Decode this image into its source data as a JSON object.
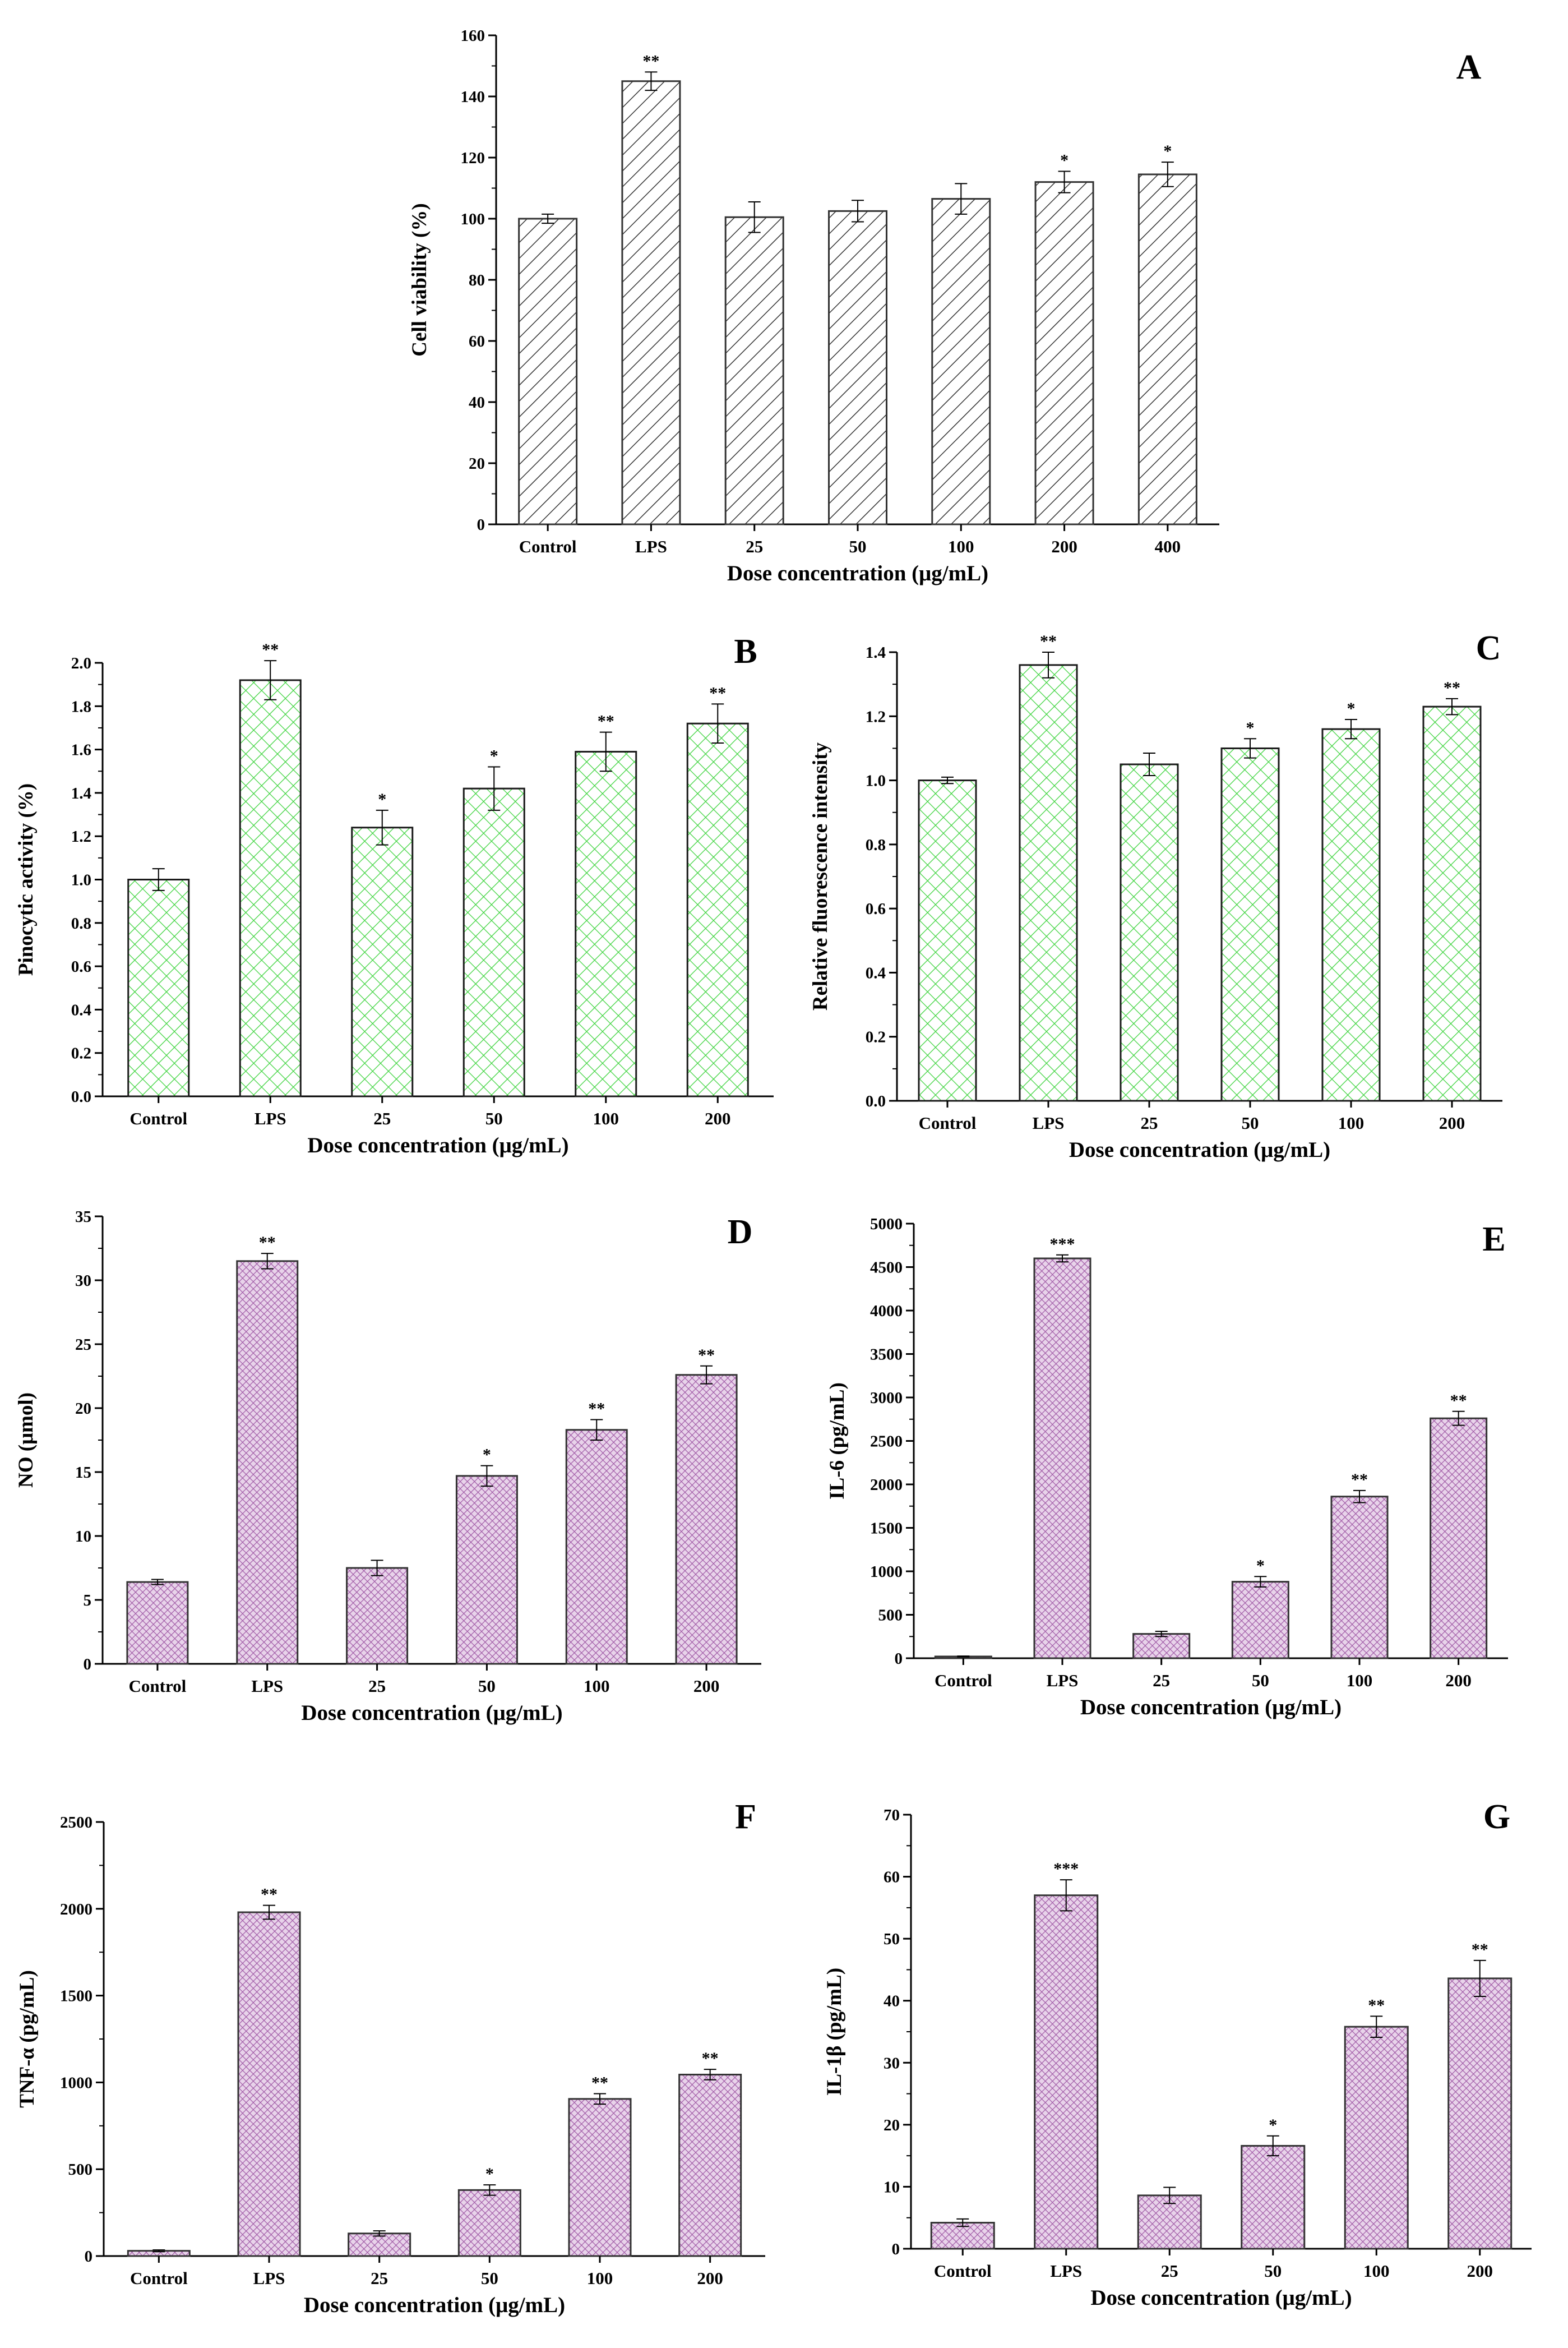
{
  "colors": {
    "panel_a": "#333333",
    "panel_bc": "#3fd43f",
    "panel_dg": "#a05aa6",
    "axis": "#000000"
  },
  "chart_data": [
    {
      "id": "A",
      "type": "bar",
      "letter": "A",
      "pattern": "diagonal-hatch",
      "categories": [
        "Control",
        "LPS",
        "25",
        "50",
        "100",
        "200",
        "400"
      ],
      "values": [
        100,
        145,
        100.5,
        102.5,
        106.5,
        112,
        114.5
      ],
      "errors": [
        1.5,
        3,
        5,
        3.5,
        5,
        3.5,
        4
      ],
      "significance": [
        "",
        "**",
        "",
        "",
        "",
        "*",
        "*"
      ],
      "ylim": [
        0,
        160
      ],
      "yticks": [
        0,
        20,
        40,
        60,
        80,
        100,
        120,
        140,
        160
      ],
      "ylabel": "Cell viability (%)",
      "xlabel": "Dose concentration (μg/mL)"
    },
    {
      "id": "B",
      "type": "bar",
      "letter": "B",
      "pattern": "crosshatch",
      "categories": [
        "Control",
        "LPS",
        "25",
        "50",
        "100",
        "200"
      ],
      "values": [
        1.0,
        1.92,
        1.24,
        1.42,
        1.59,
        1.72
      ],
      "errors": [
        0.05,
        0.09,
        0.08,
        0.1,
        0.09,
        0.09
      ],
      "significance": [
        "",
        "**",
        "*",
        "*",
        "**",
        "**"
      ],
      "ylim": [
        0,
        2.0
      ],
      "yticks": [
        "0.0",
        "0.2",
        "0.4",
        "0.6",
        "0.8",
        "1.0",
        "1.2",
        "1.4",
        "1.6",
        "1.8",
        "2.0"
      ],
      "ylabel": "Pinocytic activity (%)",
      "xlabel": "Dose concentration (μg/mL)"
    },
    {
      "id": "C",
      "type": "bar",
      "letter": "C",
      "pattern": "crosshatch",
      "categories": [
        "Control",
        "LPS",
        "25",
        "50",
        "100",
        "200"
      ],
      "values": [
        1.0,
        1.36,
        1.05,
        1.1,
        1.16,
        1.23
      ],
      "errors": [
        0.01,
        0.04,
        0.035,
        0.03,
        0.03,
        0.025
      ],
      "significance": [
        "",
        "**",
        "",
        "*",
        "*",
        "**"
      ],
      "ylim": [
        0,
        1.4
      ],
      "yticks": [
        "0.0",
        "0.2",
        "0.4",
        "0.6",
        "0.8",
        "1.0",
        "1.2",
        "1.4"
      ],
      "ylabel": "Relative fluorescence intensity",
      "xlabel": "Dose concentration (μg/mL)"
    },
    {
      "id": "D",
      "type": "bar",
      "letter": "D",
      "pattern": "fine-crosshatch",
      "categories": [
        "Control",
        "LPS",
        "25",
        "50",
        "100",
        "200"
      ],
      "values": [
        6.4,
        31.5,
        7.5,
        14.7,
        18.3,
        22.6
      ],
      "errors": [
        0.2,
        0.6,
        0.6,
        0.8,
        0.8,
        0.7
      ],
      "significance": [
        "",
        "**",
        "",
        "*",
        "**",
        "**"
      ],
      "ylim": [
        0,
        35
      ],
      "yticks": [
        0,
        5,
        10,
        15,
        20,
        25,
        30,
        35
      ],
      "ylabel": "NO (μmol)",
      "xlabel": "Dose concentration (μg/mL)"
    },
    {
      "id": "E",
      "type": "bar",
      "letter": "E",
      "pattern": "fine-crosshatch",
      "categories": [
        "Control",
        "LPS",
        "25",
        "50",
        "100",
        "200"
      ],
      "values": [
        20,
        4600,
        280,
        880,
        1860,
        2760
      ],
      "errors": [
        5,
        40,
        30,
        60,
        70,
        80
      ],
      "significance": [
        "",
        "***",
        "",
        "*",
        "**",
        "**"
      ],
      "ylim": [
        0,
        5000
      ],
      "yticks": [
        0,
        500,
        1000,
        1500,
        2000,
        2500,
        3000,
        3500,
        4000,
        4500,
        5000
      ],
      "ylabel": "IL-6 (pg/mL)",
      "xlabel": "Dose concentration (μg/mL)"
    },
    {
      "id": "F",
      "type": "bar",
      "letter": "F",
      "pattern": "fine-crosshatch",
      "categories": [
        "Control",
        "LPS",
        "25",
        "50",
        "100",
        "200"
      ],
      "values": [
        30,
        1980,
        130,
        380,
        905,
        1045
      ],
      "errors": [
        5,
        40,
        15,
        30,
        30,
        30
      ],
      "significance": [
        "",
        "**",
        "",
        "*",
        "**",
        "**"
      ],
      "ylim": [
        0,
        2500
      ],
      "yticks": [
        0,
        500,
        1000,
        1500,
        2000,
        2500
      ],
      "ylabel": "TNF-α (pg/mL)",
      "xlabel": "Dose concentration (μg/mL)"
    },
    {
      "id": "G",
      "type": "bar",
      "letter": "G",
      "pattern": "fine-crosshatch",
      "categories": [
        "Control",
        "LPS",
        "25",
        "50",
        "100",
        "200"
      ],
      "values": [
        4.2,
        57,
        8.6,
        16.6,
        35.8,
        43.6
      ],
      "errors": [
        0.6,
        2.5,
        1.3,
        1.6,
        1.7,
        2.9
      ],
      "significance": [
        "",
        "***",
        "",
        "*",
        "**",
        "**"
      ],
      "ylim": [
        0,
        70
      ],
      "yticks": [
        0,
        10,
        20,
        30,
        40,
        50,
        60,
        70
      ],
      "ylabel": "IL-1β (pg/mL)",
      "xlabel": "Dose concentration (μg/mL)"
    }
  ]
}
